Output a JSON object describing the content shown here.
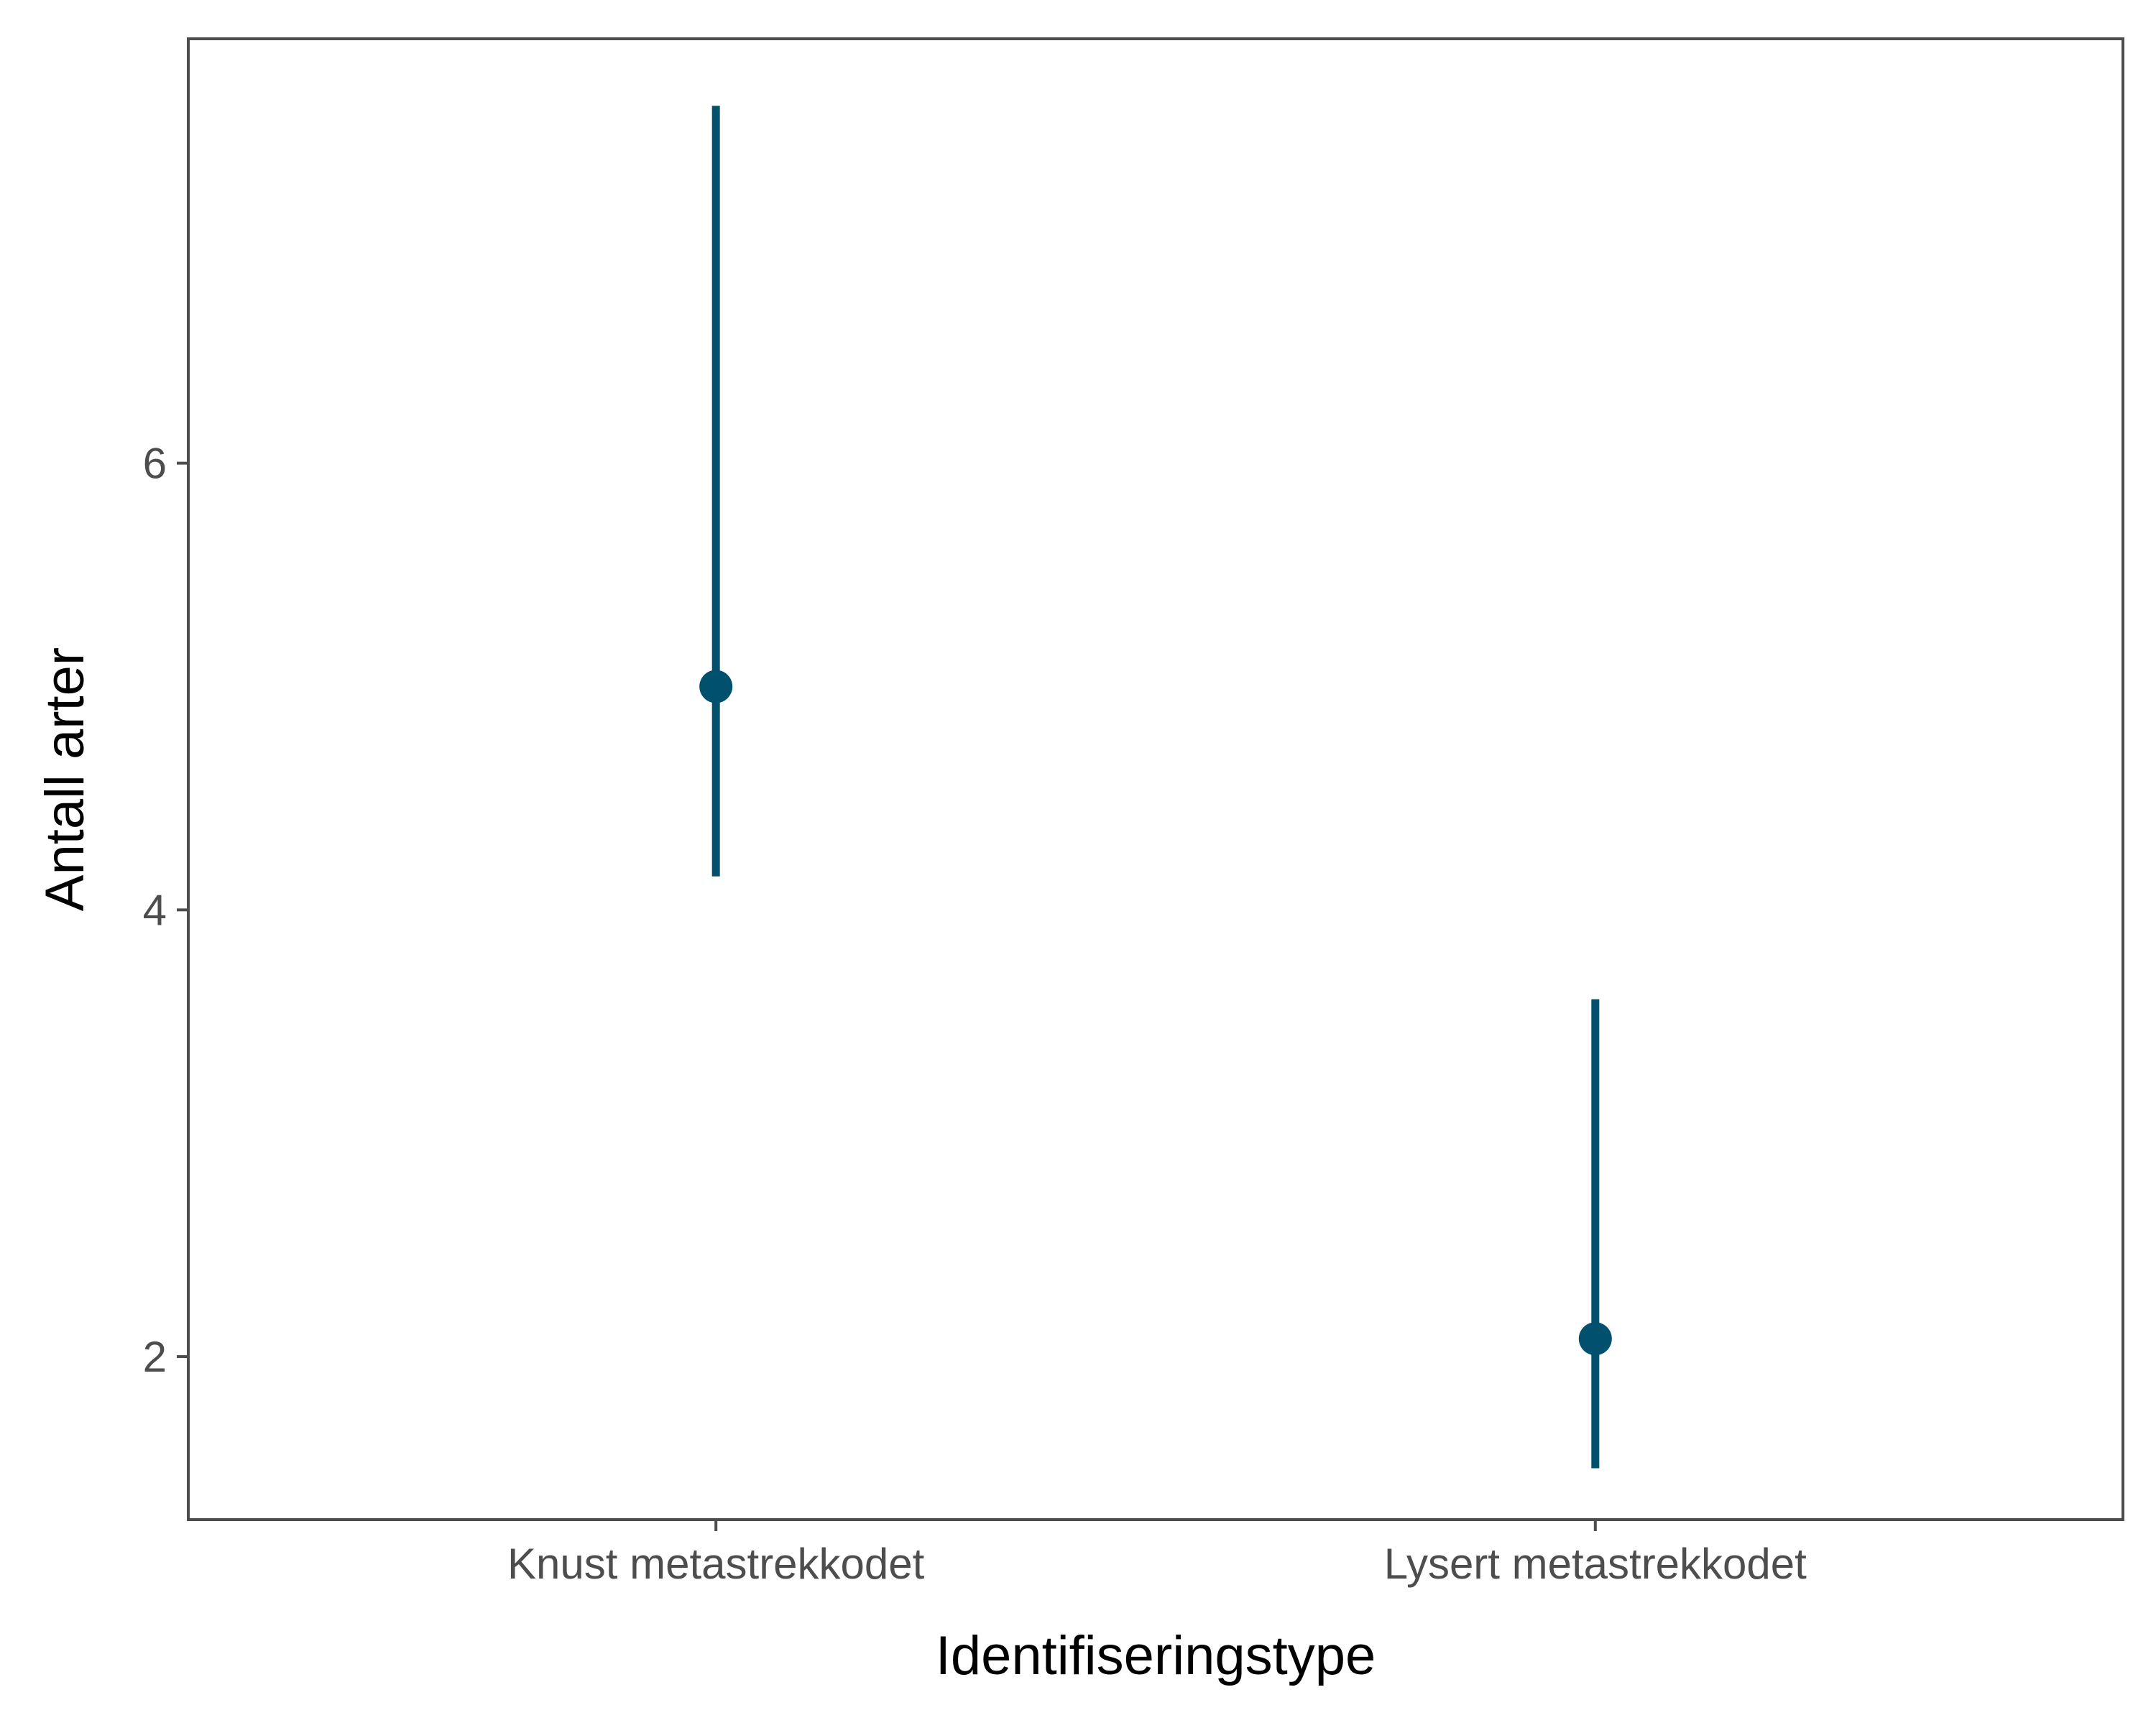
{
  "chart_data": {
    "type": "pointrange",
    "xlabel": "Identifiseringstype",
    "ylabel": "Antall arter",
    "categories": [
      "Knust metastrekkodet",
      "Lysert metastrekkodet"
    ],
    "points": [
      {
        "category": "Knust metastrekkodet",
        "y": 5.0,
        "ymin": 4.15,
        "ymax": 7.6
      },
      {
        "category": "Lysert metastrekkodet",
        "y": 2.08,
        "ymin": 1.5,
        "ymax": 3.6
      }
    ],
    "y_ticks": [
      2,
      4,
      6
    ],
    "y_tick_labels": [
      "2",
      "4",
      "6"
    ],
    "ylim": [
      1.27,
      7.9
    ],
    "grid": false,
    "legend": "none",
    "colors": {
      "series": "#00506e",
      "panel_border": "#4d4d4d",
      "tick": "#4d4d4d",
      "tick_label": "#4d4d4d",
      "axis_title": "#000000"
    }
  }
}
